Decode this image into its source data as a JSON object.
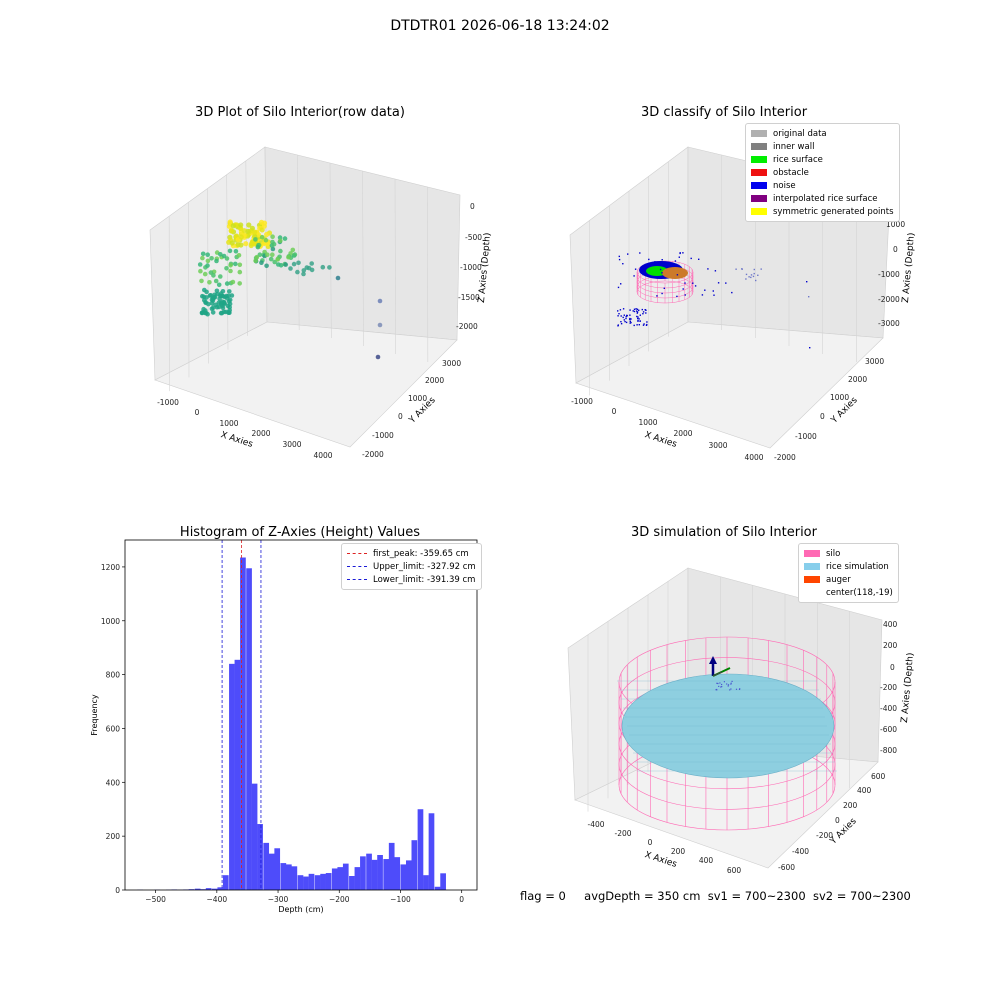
{
  "window": {
    "suptitle": "DTDTR01 2026-06-18 13:24:02"
  },
  "colors": {
    "hist_bar": "#4e4cfa",
    "peak_line": "#dd2222",
    "limit_line": "#1a1ad6",
    "silo_wire": "#ff69b4",
    "rice": "#8ecfe0",
    "auger": "#ff4500"
  },
  "chart_data": [
    {
      "type": "scatter",
      "title": "3D Plot of Silo Interior(row data)",
      "xlabel": "X Axies",
      "ylabel": "Y Axies",
      "zlabel": "Z Axies (Depth)",
      "x_ticks": [
        "-1000",
        "0",
        "1000",
        "2000",
        "3000",
        "4000"
      ],
      "y_ticks": [
        "-2000",
        "-1000",
        "0",
        "1000",
        "2000",
        "3000"
      ],
      "z_ticks": [
        "-2000",
        "-1500",
        "-1000",
        "-500",
        "0"
      ],
      "colormap": "viridis"
    },
    {
      "type": "scatter",
      "title": "3D classify of Silo Interior",
      "xlabel": "X Axies",
      "ylabel": "Y Axies",
      "zlabel": "Z Axies (Depth)",
      "x_ticks": [
        "-1000",
        "0",
        "1000",
        "2000",
        "3000",
        "4000"
      ],
      "y_ticks": [
        "-2000",
        "-1000",
        "0",
        "1000",
        "2000",
        "3000"
      ],
      "z_ticks": [
        "-3000",
        "-2000",
        "-1000",
        "0",
        "1000"
      ],
      "legend": [
        {
          "label": "original data",
          "color": "#b0b0b0"
        },
        {
          "label": "inner wall",
          "color": "#808080"
        },
        {
          "label": "rice surface",
          "color": "#00ee00"
        },
        {
          "label": "obstacle",
          "color": "#ee1111"
        },
        {
          "label": "noise",
          "color": "#0000ee"
        },
        {
          "label": "interpolated rice surface",
          "color": "#800080"
        },
        {
          "label": "symmetric generated points",
          "color": "#ffff00"
        }
      ]
    },
    {
      "type": "bar",
      "title": "Histogram of Z-Axies (Height) Values",
      "xlabel": "Depth (cm)",
      "ylabel": "Frequency",
      "xlim": [
        -550,
        25
      ],
      "ylim": [
        0,
        1300
      ],
      "x_ticks": [
        -500,
        -400,
        -300,
        -200,
        -100,
        0
      ],
      "y_ticks": [
        0,
        200,
        400,
        600,
        800,
        1000,
        1200
      ],
      "bin_width": 9.3,
      "bins": [
        [
          -530,
          1
        ],
        [
          -520,
          0
        ],
        [
          -511,
          0
        ],
        [
          -502,
          1
        ],
        [
          -492,
          0
        ],
        [
          -483,
          1
        ],
        [
          -474,
          2
        ],
        [
          -464,
          1
        ],
        [
          -455,
          2
        ],
        [
          -446,
          3
        ],
        [
          -436,
          5
        ],
        [
          -427,
          3
        ],
        [
          -418,
          7
        ],
        [
          -408,
          5
        ],
        [
          -399,
          10
        ],
        [
          -390,
          55
        ],
        [
          -380,
          840
        ],
        [
          -371,
          855
        ],
        [
          -362,
          1235
        ],
        [
          -352,
          1195
        ],
        [
          -343,
          395
        ],
        [
          -334,
          245
        ],
        [
          -324,
          175
        ],
        [
          -315,
          135
        ],
        [
          -306,
          155
        ],
        [
          -296,
          100
        ],
        [
          -287,
          95
        ],
        [
          -278,
          88
        ],
        [
          -268,
          55
        ],
        [
          -259,
          50
        ],
        [
          -250,
          60
        ],
        [
          -240,
          55
        ],
        [
          -231,
          60
        ],
        [
          -222,
          63
        ],
        [
          -212,
          80
        ],
        [
          -203,
          85
        ],
        [
          -194,
          98
        ],
        [
          -184,
          52
        ],
        [
          -175,
          85
        ],
        [
          -166,
          125
        ],
        [
          -156,
          135
        ],
        [
          -147,
          112
        ],
        [
          -138,
          130
        ],
        [
          -128,
          115
        ],
        [
          -119,
          175
        ],
        [
          -110,
          122
        ],
        [
          -100,
          95
        ],
        [
          -91,
          110
        ],
        [
          -82,
          185
        ],
        [
          -72,
          300
        ],
        [
          -63,
          55
        ],
        [
          -54,
          285
        ],
        [
          -44,
          12
        ],
        [
          -35,
          62
        ]
      ],
      "lines": [
        {
          "label": "first_peak: -359.65 cm",
          "value": -359.65,
          "color": "#dd2222"
        },
        {
          "label": "Upper_limit: -327.92 cm",
          "value": -327.92,
          "color": "#1a1ad6"
        },
        {
          "label": "Lower_limit: -391.39 cm",
          "value": -391.39,
          "color": "#1a1ad6"
        }
      ]
    },
    {
      "type": "surface",
      "title": "3D simulation of Silo Interior",
      "xlabel": "X Axies",
      "ylabel": "Y Axies",
      "zlabel": "Z Axies (Depth)",
      "x_ticks": [
        "-400",
        "-200",
        "0",
        "200",
        "400",
        "600"
      ],
      "y_ticks": [
        "-600",
        "-400",
        "-200",
        "0",
        "200",
        "400",
        "600"
      ],
      "z_ticks": [
        "-800",
        "-600",
        "-400",
        "-200",
        "0",
        "200",
        "400"
      ],
      "legend": [
        {
          "label": "silo",
          "color": "#ff69b4"
        },
        {
          "label": "rice simulation",
          "color": "#87ceeb"
        },
        {
          "label": "auger",
          "color": "#ff4500"
        },
        {
          "label": "center(118,-19)",
          "color": ""
        }
      ]
    }
  ],
  "status": {
    "flag": "flag = 0",
    "avg_depth": "avgDepth = 350 cm",
    "sv1": "sv1 = 700~2300",
    "sv2": "sv2 = 700~2300"
  }
}
